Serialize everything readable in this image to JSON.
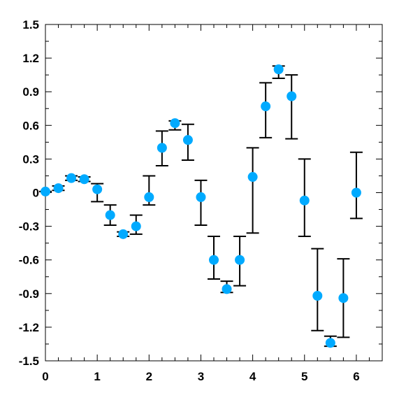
{
  "chart_data": {
    "type": "scatter",
    "title": "",
    "xlabel": "",
    "ylabel": "",
    "xlim": [
      0,
      6.5
    ],
    "ylim": [
      -1.5,
      1.5
    ],
    "x_ticks": [
      0,
      1,
      2,
      3,
      4,
      5,
      6
    ],
    "x_tick_labels": [
      "0",
      "1",
      "2",
      "3",
      "4",
      "5",
      "6"
    ],
    "y_ticks": [
      -1.5,
      -1.2,
      -0.9,
      -0.6,
      -0.3,
      0,
      0.3,
      0.6,
      0.9,
      1.2,
      1.5
    ],
    "y_tick_labels": [
      "-1.5",
      "-1.2",
      "-0.9",
      "-0.6",
      "-0.3",
      "0",
      "0.3",
      "0.6",
      "0.9",
      "1.2",
      "1.5"
    ],
    "grid": false,
    "marker_color": "#00aaff",
    "errorbar_color": "#000000",
    "series": [
      {
        "x": [
          0,
          0.25,
          0.5,
          0.75,
          1.0,
          1.25,
          1.5,
          1.75,
          2.0,
          2.25,
          2.5,
          2.75,
          3.0,
          3.25,
          3.5,
          3.75,
          4.0,
          4.25,
          4.5,
          4.75,
          5.0,
          5.25,
          5.5,
          5.75,
          6.0
        ],
        "y": [
          0.01,
          0.04,
          0.13,
          0.12,
          0.03,
          -0.2,
          -0.37,
          -0.3,
          -0.04,
          0.4,
          0.62,
          0.47,
          -0.04,
          -0.6,
          -0.86,
          -0.6,
          0.14,
          0.77,
          1.1,
          0.86,
          -0.07,
          -0.92,
          -1.34,
          -0.94,
          0.0
        ],
        "y_low": [
          0.01,
          0.02,
          0.11,
          0.1,
          -0.08,
          -0.29,
          -0.39,
          -0.37,
          -0.11,
          0.24,
          0.56,
          0.29,
          -0.29,
          -0.77,
          -0.89,
          -0.83,
          -0.36,
          0.49,
          1.02,
          0.48,
          -0.39,
          -1.23,
          -1.37,
          -1.29,
          -0.23
        ],
        "y_high": [
          0.01,
          0.06,
          0.15,
          0.14,
          0.08,
          -0.11,
          -0.35,
          -0.2,
          0.15,
          0.55,
          0.64,
          0.61,
          0.11,
          -0.39,
          -0.79,
          -0.39,
          0.4,
          0.98,
          1.13,
          1.05,
          0.3,
          -0.5,
          -1.28,
          -0.59,
          0.36
        ]
      }
    ]
  }
}
